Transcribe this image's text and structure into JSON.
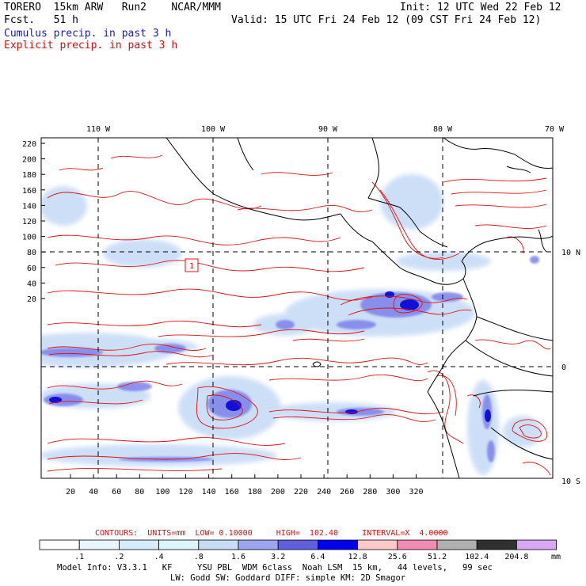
{
  "header": {
    "model": "TORERO  15km ARW   Run2    NCAR/MMM",
    "fcst": "Fcst.   51 h",
    "init": "Init: 12 UTC Wed 22 Feb 12",
    "valid": "Valid: 15 UTC Fri 24 Feb 12 (09 CST Fri 24 Feb 12)",
    "cumulus_label": "Cumulus precip. in past 3 h",
    "explicit_label": "Explicit precip. in past 3 h"
  },
  "map": {
    "lon_labels": [
      "110 W",
      "100 W",
      "90 W",
      "80 W",
      "70 W"
    ],
    "lat_labels": [
      "10 N",
      "0",
      "10 S"
    ],
    "y_ticks": [
      "220",
      "200",
      "180",
      "160",
      "140",
      "120",
      "100",
      "80",
      "60",
      "40",
      "20"
    ],
    "x_ticks": [
      "20",
      "40",
      "60",
      "80",
      "100",
      "120",
      "140",
      "160",
      "180",
      "200",
      "220",
      "240",
      "260",
      "280",
      "300",
      "320"
    ],
    "contour_box_value": "1"
  },
  "contour_info": {
    "text": "CONTOURS:  UNITS=mm  LOW= 0.10000     HIGH=  102.40     INTERVAL=X  4.0000"
  },
  "legend": {
    "labels": [
      ".1",
      ".2",
      ".4",
      ".8",
      "1.6",
      "3.2",
      "6.4",
      "12.8",
      "25.6",
      "51.2",
      "102.4",
      "204.8"
    ],
    "unit": "mm",
    "colors": [
      "#ffffff",
      "#e8f4ff",
      "#d6ecfc",
      "#dcf6fb",
      "#c8dbf7",
      "#9ca6f0",
      "#5f5fe0",
      "#0000ee",
      "#fcc8c8",
      "#f08cb4",
      "#b0b0b0",
      "#303030",
      "#d8a8f4"
    ]
  },
  "footer": {
    "line1": "Model Info: V3.3.1   KF     YSU PBL  WDM 6class  Noah LSM  15 km,   44 levels,   99 sec",
    "line2": "LW: Godd SW: Goddard DIFF: simple KM: 2D Smagor"
  }
}
